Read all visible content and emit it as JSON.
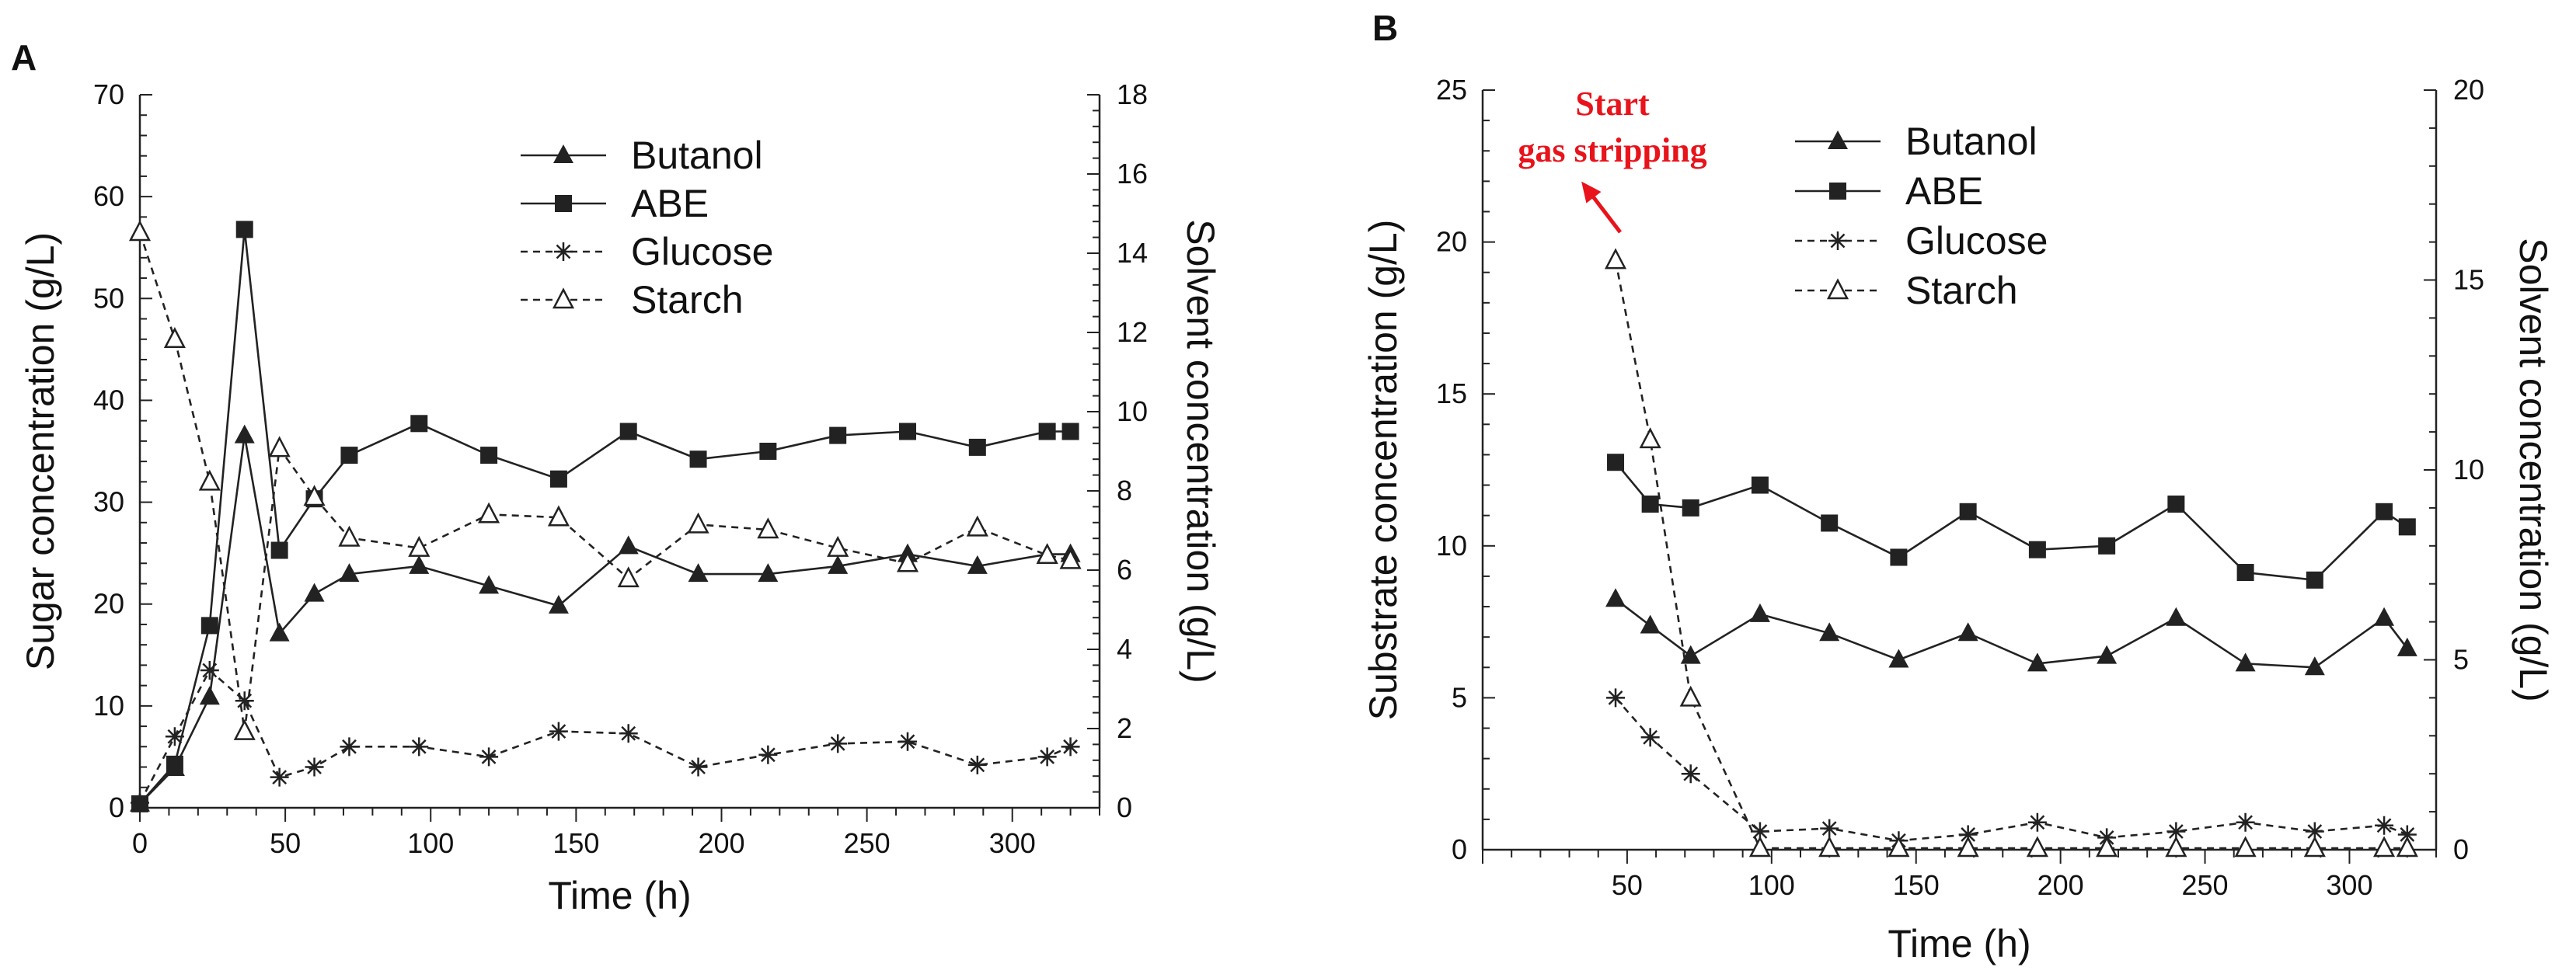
{
  "colors": {
    "line": "#222222",
    "annotation": "#e8131b",
    "background": "#ffffff"
  },
  "chart_data": [
    {
      "panel": "A",
      "type": "line",
      "xlabel": "Time (h)",
      "ylabel": "Sugar concentration (g/L)",
      "y2label": "Solvent concentration (g/L)",
      "xlim": [
        0,
        330
      ],
      "ylim": [
        0,
        70
      ],
      "y2lim": [
        0,
        18
      ],
      "xticks": [
        0,
        50,
        100,
        150,
        200,
        250,
        300
      ],
      "yticks": [
        0,
        10,
        20,
        30,
        40,
        50,
        60,
        70
      ],
      "y2ticks": [
        0,
        2,
        4,
        6,
        8,
        10,
        12,
        14,
        16,
        18
      ],
      "legend_position": "top-center",
      "series": [
        {
          "name": "Butanol",
          "axis": "right",
          "style": "solid",
          "marker": "triangle-filled",
          "x": [
            0,
            12,
            24,
            36,
            48,
            60,
            72,
            96,
            120,
            144,
            168,
            192,
            216,
            240,
            264,
            288,
            312,
            320
          ],
          "y": [
            0.1,
            1.0,
            2.8,
            9.4,
            4.4,
            5.4,
            5.9,
            6.1,
            5.6,
            5.1,
            6.6,
            5.9,
            5.9,
            6.1,
            6.4,
            6.1,
            6.4,
            6.4
          ]
        },
        {
          "name": "ABE",
          "axis": "right",
          "style": "solid",
          "marker": "square-filled",
          "x": [
            0,
            12,
            24,
            36,
            48,
            60,
            72,
            96,
            120,
            144,
            168,
            192,
            216,
            240,
            264,
            288,
            312,
            320
          ],
          "y": [
            0.1,
            1.1,
            4.6,
            14.6,
            6.5,
            7.8,
            8.9,
            9.7,
            8.9,
            8.3,
            9.5,
            8.8,
            9.0,
            9.4,
            9.5,
            9.1,
            9.5,
            9.5
          ]
        },
        {
          "name": "Glucose",
          "axis": "left",
          "style": "dashed",
          "marker": "asterisk",
          "x": [
            0,
            12,
            24,
            36,
            48,
            60,
            72,
            96,
            120,
            144,
            168,
            192,
            216,
            240,
            264,
            288,
            312,
            320
          ],
          "y": [
            0.5,
            7,
            13.5,
            10.5,
            3,
            4,
            6,
            6,
            5,
            7.5,
            7.3,
            4,
            5.2,
            6.3,
            6.5,
            4.2,
            5,
            6
          ]
        },
        {
          "name": "Starch",
          "axis": "left",
          "style": "dashed",
          "marker": "triangle-open",
          "x": [
            0,
            12,
            24,
            36,
            48,
            60,
            72,
            96,
            120,
            144,
            168,
            192,
            216,
            240,
            264,
            288,
            312,
            320
          ],
          "y": [
            56.5,
            46,
            32,
            7.5,
            35.3,
            30.5,
            26.5,
            25.5,
            28.8,
            28.5,
            22.5,
            27.8,
            27.3,
            25.5,
            24,
            27.5,
            24.8,
            24.3
          ]
        }
      ]
    },
    {
      "panel": "B",
      "type": "line",
      "xlabel": "Time (h)",
      "ylabel": "Substrate concentration (g/L)",
      "y2label": "Solvent concentration  (g/L)",
      "xlim": [
        0,
        330
      ],
      "ylim": [
        0,
        25
      ],
      "y2lim": [
        0,
        20
      ],
      "xticks": [
        50,
        100,
        150,
        200,
        250,
        300
      ],
      "yticks": [
        0,
        5,
        10,
        15,
        20,
        25
      ],
      "y2ticks": [
        0,
        5,
        10,
        15,
        20
      ],
      "legend_position": "top-center",
      "annotation": {
        "lines": [
          "Start",
          "gas stripping"
        ],
        "points_to": [
          46,
          19.3
        ]
      },
      "series": [
        {
          "name": "Butanol",
          "axis": "right",
          "style": "solid",
          "marker": "triangle-filled",
          "x": [
            46,
            58,
            72,
            96,
            120,
            144,
            168,
            192,
            216,
            240,
            264,
            288,
            312,
            320
          ],
          "y": [
            6.6,
            5.9,
            5.1,
            6.2,
            5.7,
            5.0,
            5.7,
            4.9,
            5.1,
            6.1,
            4.9,
            4.8,
            6.1,
            5.3
          ]
        },
        {
          "name": "ABE",
          "axis": "right",
          "style": "solid",
          "marker": "square-filled",
          "x": [
            46,
            58,
            72,
            96,
            120,
            144,
            168,
            192,
            216,
            240,
            264,
            288,
            312,
            320
          ],
          "y": [
            10.2,
            9.1,
            9.0,
            9.6,
            8.6,
            7.7,
            8.9,
            7.9,
            8.0,
            9.1,
            7.3,
            7.1,
            8.9,
            8.5
          ]
        },
        {
          "name": "Glucose",
          "axis": "left",
          "style": "dashed",
          "marker": "asterisk",
          "x": [
            46,
            58,
            72,
            96,
            120,
            144,
            168,
            192,
            216,
            240,
            264,
            288,
            312,
            320
          ],
          "y": [
            5.0,
            3.7,
            2.5,
            0.6,
            0.7,
            0.3,
            0.5,
            0.9,
            0.4,
            0.6,
            0.9,
            0.6,
            0.8,
            0.5
          ]
        },
        {
          "name": "Starch",
          "axis": "left",
          "style": "dashed",
          "marker": "triangle-open",
          "x": [
            46,
            58,
            72,
            96,
            120,
            144,
            168,
            192,
            216,
            240,
            264,
            288,
            312,
            320
          ],
          "y": [
            19.4,
            13.5,
            5.0,
            0.05,
            0.05,
            0.05,
            0.05,
            0.05,
            0.05,
            0.05,
            0.05,
            0.05,
            0.05,
            0.05
          ]
        }
      ]
    }
  ]
}
